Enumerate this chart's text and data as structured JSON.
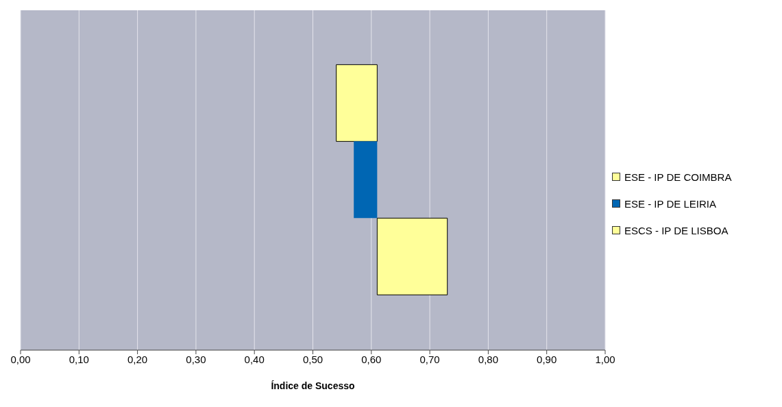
{
  "chart_data": {
    "type": "bar",
    "orientation": "horizontal",
    "xlabel": "Índice de Sucesso",
    "categories": [
      null
    ],
    "series": [
      {
        "name": "ESE - IP DE COIMBRA",
        "color": "#ffff99",
        "values": [
          0.07
        ],
        "base": [
          0.54
        ]
      },
      {
        "name": "ESE - IP DE LEIRIA",
        "color": "#0066b3",
        "values": [
          0.04
        ],
        "base": [
          0.57
        ]
      },
      {
        "name": "ESCS - IP DE LISBOA",
        "color": "#ffff99",
        "values": [
          0.12
        ],
        "base": [
          0.61
        ]
      }
    ],
    "xlim": [
      0,
      1
    ],
    "xticks": [
      {
        "value": 0,
        "label": "0,00"
      },
      {
        "value": 0.1,
        "label": "0,10"
      },
      {
        "value": 0.2,
        "label": "0,20"
      },
      {
        "value": 0.3,
        "label": "0,30"
      },
      {
        "value": 0.4,
        "label": "0,40"
      },
      {
        "value": 0.5,
        "label": "0,50"
      },
      {
        "value": 0.6,
        "label": "0,60"
      },
      {
        "value": 0.7,
        "label": "0,70"
      },
      {
        "value": 0.8,
        "label": "0,80"
      },
      {
        "value": 0.9,
        "label": "0,90"
      },
      {
        "value": 1,
        "label": "1,00"
      }
    ],
    "grid": "x",
    "legend": "right",
    "tick_labels": "x"
  }
}
